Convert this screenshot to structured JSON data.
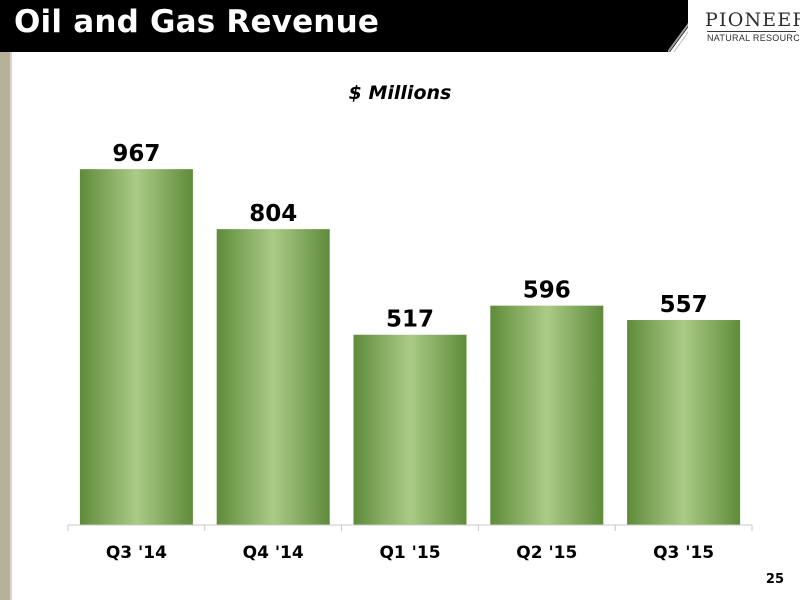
{
  "header": {
    "title": "Oil and Gas Revenue",
    "logo_name": "PIONEER",
    "logo_sub": "NATURAL RESOURCES"
  },
  "colors": {
    "header_bg": "#000000",
    "bar_dark": "#5f8b3a",
    "bar_light": "#aacb86",
    "left_band": "#b7b199"
  },
  "page_number": "25",
  "chart_data": {
    "type": "bar",
    "title": "",
    "subtitle": "$ Millions",
    "categories": [
      "Q3 '14",
      "Q4 '14",
      "Q1 '15",
      "Q2 '15",
      "Q3 '15"
    ],
    "values": [
      967,
      804,
      517,
      596,
      557
    ],
    "data_labels": [
      "967",
      "804",
      "517",
      "596",
      "557"
    ],
    "ylim": [
      0,
      1000
    ],
    "grid": false,
    "legend": "none"
  }
}
